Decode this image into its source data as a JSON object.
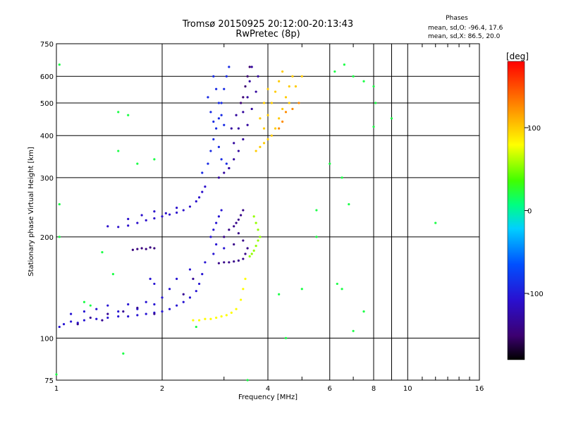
{
  "chart_data": {
    "type": "scatter",
    "title": "Tromsø 20150925 20:12:00-20:13:43",
    "subtitle": "RwPretec (8p)",
    "xlabel": "Frequency [MHz]",
    "ylabel": "Stationary phase Virtual Height [km]",
    "x_scale": "log",
    "y_scale": "log",
    "xlim": [
      1,
      16
    ],
    "ylim": [
      75,
      750
    ],
    "x_ticks": [
      1,
      2,
      4,
      6,
      8,
      10,
      16
    ],
    "y_ticks": [
      75,
      100,
      200,
      300,
      400,
      500,
      600,
      750
    ],
    "grid": true,
    "stats": {
      "heading": "Phases",
      "line_o": "mean, sd,O: -96.4, 17.6",
      "line_x": "mean, sd,X:  86.5, 20.0"
    },
    "colorbar": {
      "label": "[deg]",
      "range": [
        -180,
        180
      ],
      "ticks": [
        {
          "value": 100,
          "label": "100"
        },
        {
          "value": 0,
          "label": "0"
        },
        {
          "value": -100,
          "label": "-100"
        }
      ]
    },
    "series": [
      {
        "points": [
          [
            1.02,
            108
          ],
          [
            1.05,
            110
          ],
          [
            1.1,
            112
          ],
          [
            1.15,
            111
          ],
          [
            1.2,
            113
          ],
          [
            1.3,
            114
          ],
          [
            1.4,
            115
          ],
          [
            1.5,
            116
          ],
          [
            1.6,
            116
          ],
          [
            1.7,
            117
          ],
          [
            1.8,
            118
          ],
          [
            1.9,
            119
          ],
          [
            2.0,
            120
          ],
          [
            2.1,
            122
          ],
          [
            2.2,
            125
          ],
          [
            2.3,
            128
          ],
          [
            2.4,
            132
          ],
          [
            2.5,
            138
          ],
          [
            2.55,
            145
          ],
          [
            2.6,
            155
          ],
          [
            2.65,
            168
          ],
          [
            1.1,
            118
          ],
          [
            1.2,
            120
          ],
          [
            1.3,
            122
          ],
          [
            1.4,
            125
          ],
          [
            1.5,
            120
          ],
          [
            1.6,
            126
          ],
          [
            1.7,
            122
          ],
          [
            1.8,
            128
          ],
          [
            1.9,
            126
          ],
          [
            2.0,
            132
          ],
          [
            2.1,
            140
          ],
          [
            1.85,
            150
          ],
          [
            1.9,
            145
          ],
          [
            2.2,
            150
          ],
          [
            2.4,
            160
          ]
        ],
        "color_value": -105
      },
      {
        "points": [
          [
            1.25,
            115
          ],
          [
            1.4,
            118
          ],
          [
            1.55,
            120
          ],
          [
            1.7,
            123
          ],
          [
            1.9,
            118
          ],
          [
            1.15,
            110
          ],
          [
            1.35,
            113
          ],
          [
            2.3,
            135
          ],
          [
            2.45,
            150
          ]
        ],
        "color_value": -135
      },
      {
        "points": [
          [
            1.4,
            215
          ],
          [
            1.5,
            214
          ],
          [
            1.6,
            216
          ],
          [
            1.7,
            220
          ],
          [
            1.8,
            224
          ],
          [
            1.9,
            227
          ],
          [
            2.0,
            230
          ],
          [
            2.1,
            233
          ],
          [
            2.2,
            236
          ],
          [
            2.3,
            240
          ],
          [
            2.4,
            246
          ],
          [
            2.5,
            255
          ],
          [
            2.55,
            262
          ],
          [
            2.6,
            272
          ],
          [
            2.65,
            282
          ],
          [
            1.6,
            226
          ],
          [
            1.75,
            232
          ],
          [
            1.9,
            238
          ],
          [
            2.05,
            235
          ],
          [
            2.2,
            244
          ]
        ],
        "color_value": -110
      },
      {
        "points": [
          [
            1.65,
            183
          ],
          [
            1.7,
            184
          ],
          [
            1.75,
            185
          ],
          [
            1.8,
            184
          ],
          [
            1.85,
            186
          ],
          [
            1.9,
            185
          ]
        ],
        "color_value": -145
      },
      {
        "points": [
          [
            2.9,
            167
          ],
          [
            3.0,
            168
          ],
          [
            3.1,
            168
          ],
          [
            3.2,
            169
          ],
          [
            3.3,
            170
          ],
          [
            3.4,
            172
          ],
          [
            3.45,
            178
          ],
          [
            3.5,
            185
          ],
          [
            3.4,
            195
          ],
          [
            3.3,
            205
          ],
          [
            3.2,
            215
          ],
          [
            3.3,
            225
          ],
          [
            3.1,
            210
          ],
          [
            3.0,
            200
          ],
          [
            3.2,
            190
          ],
          [
            3.4,
            240
          ],
          [
            3.35,
            232
          ],
          [
            3.25,
            220
          ]
        ],
        "color_value": -140
      },
      {
        "points": [
          [
            2.75,
            200
          ],
          [
            2.8,
            210
          ],
          [
            2.85,
            220
          ],
          [
            2.9,
            230
          ],
          [
            2.95,
            240
          ],
          [
            2.85,
            190
          ],
          [
            3.0,
            185
          ],
          [
            2.8,
            178
          ]
        ],
        "color_value": -105
      },
      {
        "points": [
          [
            2.45,
            113
          ],
          [
            2.55,
            113
          ],
          [
            2.65,
            114
          ],
          [
            2.75,
            114
          ],
          [
            2.85,
            115
          ],
          [
            2.95,
            116
          ],
          [
            3.05,
            117
          ],
          [
            3.15,
            119
          ],
          [
            3.25,
            122
          ],
          [
            3.35,
            130
          ],
          [
            3.4,
            140
          ],
          [
            3.45,
            150
          ]
        ],
        "color_value": 80
      },
      {
        "points": [
          [
            3.55,
            175
          ],
          [
            3.6,
            178
          ],
          [
            3.65,
            182
          ],
          [
            3.7,
            188
          ],
          [
            3.75,
            195
          ],
          [
            3.8,
            200
          ],
          [
            3.75,
            210
          ],
          [
            3.7,
            220
          ],
          [
            3.65,
            230
          ]
        ],
        "color_value": 55
      },
      {
        "points": [
          [
            2.6,
            310
          ],
          [
            2.7,
            330
          ],
          [
            2.75,
            360
          ],
          [
            2.8,
            390
          ],
          [
            2.85,
            420
          ],
          [
            2.9,
            450
          ],
          [
            2.95,
            500
          ],
          [
            3.0,
            550
          ],
          [
            3.05,
            600
          ],
          [
            3.1,
            640
          ],
          [
            2.8,
            600
          ],
          [
            2.85,
            550
          ],
          [
            2.9,
            500
          ],
          [
            2.95,
            460
          ],
          [
            3.0,
            430
          ],
          [
            2.75,
            470
          ],
          [
            2.7,
            520
          ],
          [
            2.8,
            440
          ],
          [
            2.9,
            370
          ],
          [
            2.95,
            340
          ],
          [
            3.05,
            330
          ],
          [
            3.1,
            320
          ]
        ],
        "color_value": -90
      },
      {
        "points": [
          [
            2.9,
            300
          ],
          [
            3.0,
            310
          ],
          [
            3.1,
            320
          ],
          [
            3.2,
            340
          ],
          [
            3.3,
            360
          ],
          [
            3.4,
            390
          ],
          [
            3.5,
            430
          ],
          [
            3.6,
            480
          ],
          [
            3.7,
            540
          ],
          [
            3.75,
            600
          ],
          [
            3.3,
            420
          ],
          [
            3.4,
            470
          ],
          [
            3.5,
            520
          ],
          [
            3.55,
            580
          ],
          [
            3.6,
            640
          ],
          [
            3.2,
            380
          ],
          [
            3.15,
            420
          ],
          [
            3.25,
            460
          ]
        ],
        "color_value": -130
      },
      {
        "points": [
          [
            3.55,
            640
          ],
          [
            3.5,
            600
          ],
          [
            3.45,
            560
          ],
          [
            3.4,
            520
          ],
          [
            3.35,
            500
          ]
        ],
        "color_value": -150
      },
      {
        "points": [
          [
            3.7,
            360
          ],
          [
            3.8,
            370
          ],
          [
            3.9,
            380
          ],
          [
            4.0,
            390
          ],
          [
            4.1,
            400
          ],
          [
            4.2,
            420
          ],
          [
            4.3,
            450
          ],
          [
            4.4,
            480
          ],
          [
            4.5,
            520
          ],
          [
            4.6,
            560
          ],
          [
            4.7,
            600
          ],
          [
            3.9,
            420
          ],
          [
            4.0,
            460
          ],
          [
            4.1,
            500
          ],
          [
            4.2,
            540
          ],
          [
            4.3,
            580
          ],
          [
            4.4,
            620
          ],
          [
            4.6,
            500
          ],
          [
            4.8,
            560
          ],
          [
            5.0,
            600
          ],
          [
            3.8,
            450
          ],
          [
            3.9,
            500
          ],
          [
            4.0,
            550
          ]
        ],
        "color_value": 100
      },
      {
        "points": [
          [
            4.3,
            420
          ],
          [
            4.4,
            440
          ],
          [
            4.5,
            470
          ],
          [
            4.7,
            480
          ],
          [
            4.9,
            500
          ]
        ],
        "color_value": 125
      },
      {
        "points": [
          [
            1.02,
            650
          ],
          [
            1.02,
            250
          ],
          [
            1.5,
            470
          ],
          [
            1.6,
            460
          ],
          [
            1.5,
            360
          ],
          [
            1.7,
            330
          ],
          [
            1.9,
            340
          ],
          [
            1.02,
            200
          ],
          [
            1.35,
            180
          ],
          [
            1.45,
            155
          ],
          [
            1.2,
            128
          ],
          [
            1.25,
            125
          ],
          [
            1.55,
            90
          ],
          [
            1.0,
            78
          ],
          [
            5.5,
            200
          ],
          [
            6.0,
            330
          ],
          [
            6.5,
            300
          ],
          [
            6.8,
            250
          ],
          [
            7.0,
            600
          ],
          [
            7.5,
            580
          ],
          [
            8.0,
            560
          ],
          [
            8.1,
            500
          ],
          [
            9.0,
            450
          ],
          [
            12.0,
            220
          ],
          [
            6.3,
            145
          ],
          [
            6.5,
            140
          ],
          [
            7.0,
            105
          ],
          [
            7.5,
            120
          ],
          [
            8.0,
            425
          ],
          [
            4.5,
            100
          ],
          [
            5.0,
            140
          ],
          [
            4.3,
            135
          ],
          [
            3.5,
            75
          ],
          [
            2.5,
            108
          ],
          [
            5.5,
            240
          ],
          [
            6.6,
            650
          ],
          [
            6.2,
            620
          ]
        ],
        "color_value": 20
      }
    ]
  }
}
